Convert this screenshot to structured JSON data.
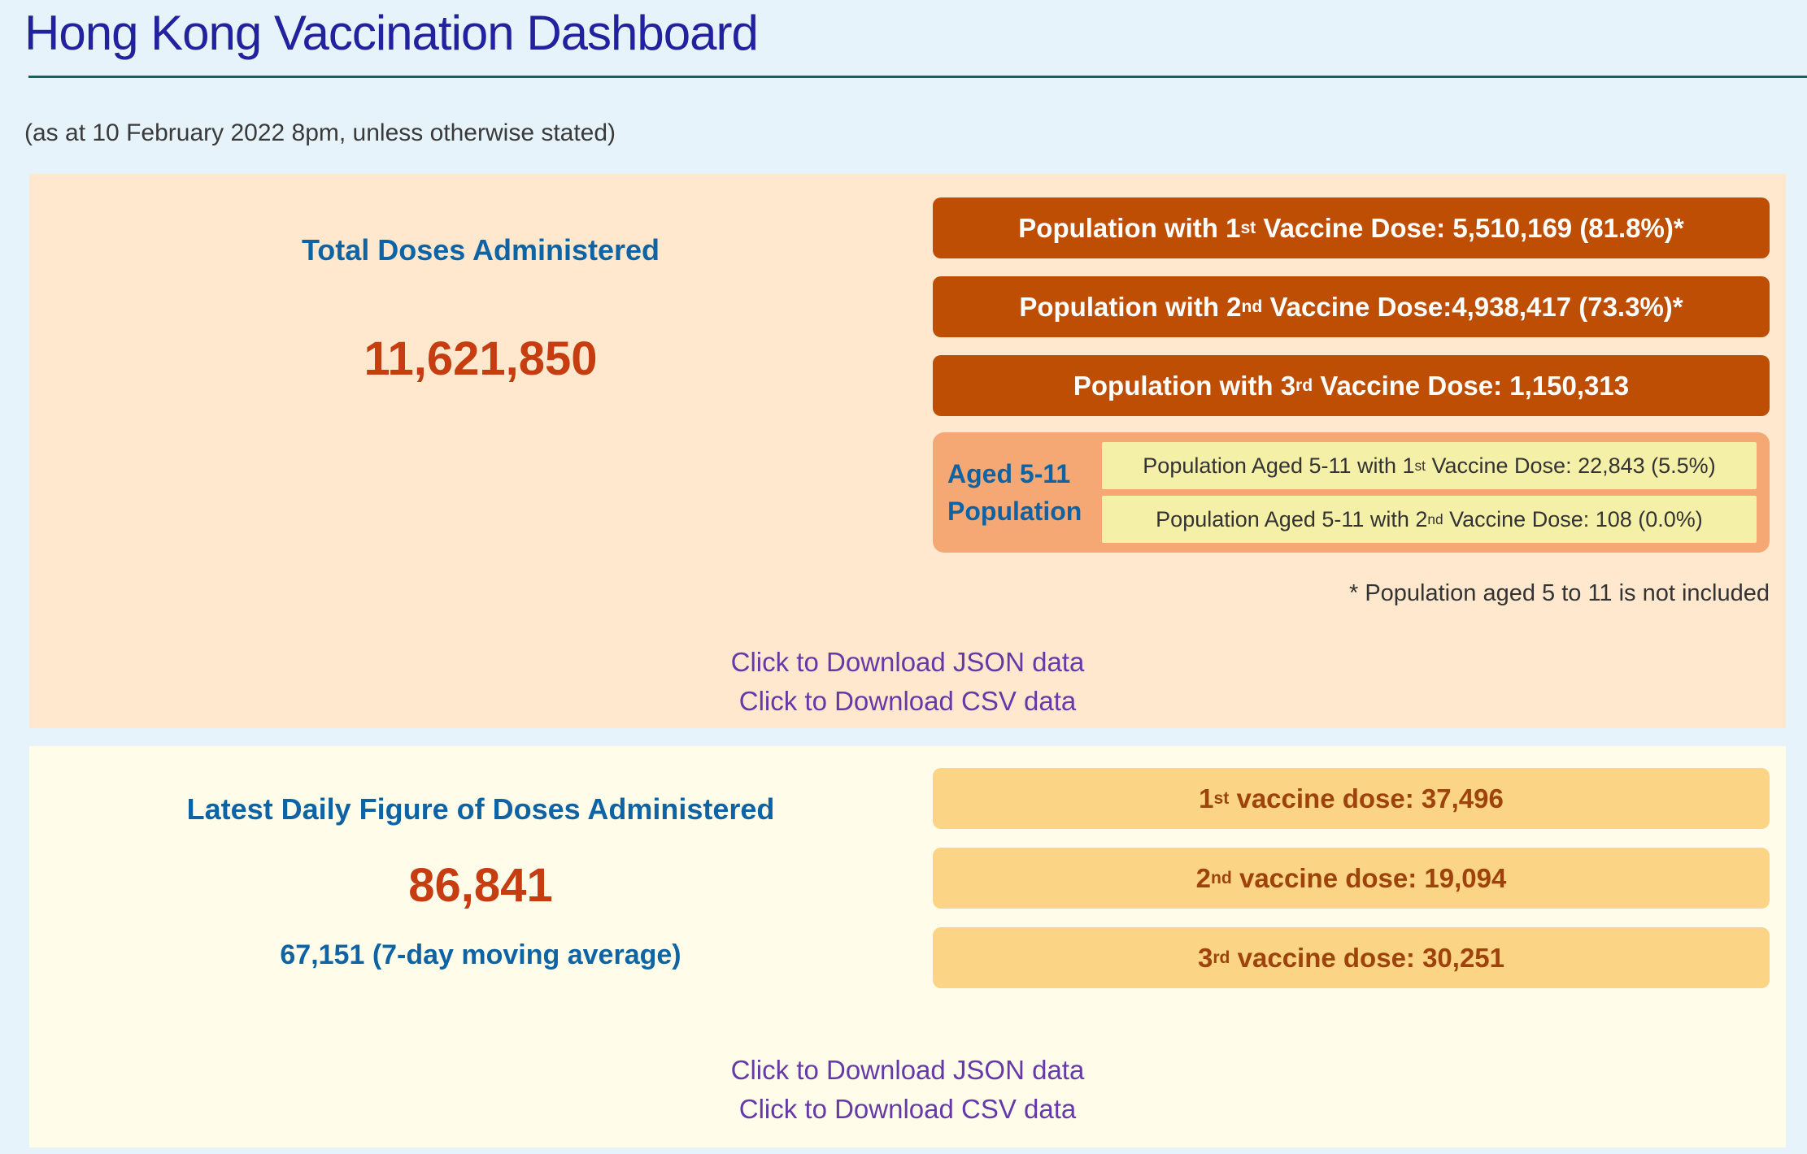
{
  "header": {
    "title": "Hong Kong Vaccination Dashboard",
    "subtitle": "(as at 10 February 2022 8pm, unless otherwise stated)"
  },
  "total_panel": {
    "heading": "Total Doses Administered",
    "total_doses": "11,621,850",
    "bars": [
      {
        "prefix": "Population with 1",
        "sup": "st",
        "suffix": " Vaccine Dose: 5,510,169 (81.8%)*"
      },
      {
        "prefix": "Population with 2",
        "sup": "nd",
        "suffix": " Vaccine Dose:4,938,417 (73.3%)*"
      },
      {
        "prefix": "Population with 3",
        "sup": "rd",
        "suffix": " Vaccine Dose: 1,150,313"
      }
    ],
    "aged_5_11": {
      "label_line1": "Aged 5-11",
      "label_line2": "Population",
      "rows": [
        {
          "prefix": "Population Aged 5-11 with 1",
          "sup": "st",
          "suffix": " Vaccine Dose: 22,843 (5.5%)"
        },
        {
          "prefix": "Population Aged 5-11 with 2",
          "sup": "nd",
          "suffix": " Vaccine Dose: 108 (0.0%)"
        }
      ]
    },
    "footnote": "* Population aged 5 to 11 is not included",
    "links": {
      "json": "Click to Download JSON data",
      "csv": "Click to Download CSV data"
    }
  },
  "daily_panel": {
    "heading": "Latest Daily Figure of Doses Administered",
    "daily_doses": "86,841",
    "moving_average": "67,151 (7-day moving average)",
    "bars": [
      {
        "prefix": "1",
        "sup": "st",
        "suffix": " vaccine dose: 37,496"
      },
      {
        "prefix": "2",
        "sup": "nd",
        "suffix": " vaccine dose: 19,094"
      },
      {
        "prefix": "3",
        "sup": "rd",
        "suffix": " vaccine dose: 30,251"
      }
    ],
    "links": {
      "json": "Click to Download JSON data",
      "csv": "Click to Download CSV data"
    }
  },
  "colors": {
    "page_background": "#e7f3fa",
    "title_navy": "#22229e",
    "rule_green": "#07695a",
    "total_panel_background": "#ffe8cd",
    "daily_panel_background": "#fffdea",
    "dark_bar": "#bd4e04",
    "gold_bar": "#fbd486",
    "aged_container_salmon": "#f5a873",
    "aged_row_yellow": "#f5f0a8",
    "heading_blue": "#0e63a5",
    "number_red": "#c53d10",
    "link_purple": "#6639a8"
  }
}
